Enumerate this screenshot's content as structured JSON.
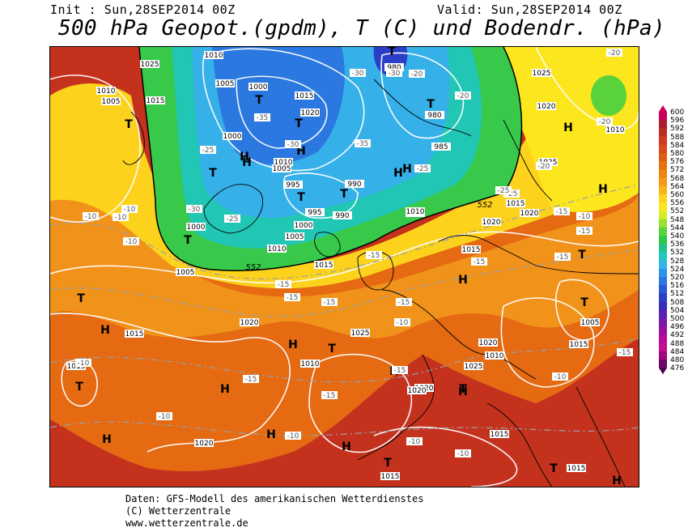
{
  "header": {
    "init": "Init : Sun,28SEP2014 00Z",
    "valid": "Valid: Sun,28SEP2014 00Z",
    "title": "500 hPa Geopot.(gpdm), T (C) und Bodendr. (hPa)"
  },
  "footer": {
    "line1": "Daten: GFS-Modell des amerikanischen Wetterdienstes",
    "line2": "(C) Wetterzentrale",
    "line3": "www.wetterzentrale.de"
  },
  "colorbar": {
    "levels": [
      "600",
      "596",
      "592",
      "588",
      "584",
      "580",
      "576",
      "572",
      "568",
      "564",
      "560",
      "556",
      "552",
      "548",
      "544",
      "540",
      "536",
      "532",
      "528",
      "524",
      "520",
      "516",
      "512",
      "508",
      "504",
      "500",
      "496",
      "492",
      "488",
      "484",
      "480",
      "476"
    ],
    "colors": [
      "#c8005a",
      "#b01e2a",
      "#be2e24",
      "#cc3c1e",
      "#d84a18",
      "#e05c14",
      "#e87010",
      "#ee8412",
      "#f39a16",
      "#f8b41a",
      "#fcd21c",
      "#fce61e",
      "#d4ec28",
      "#9ce034",
      "#5ad23c",
      "#2ec848",
      "#22c48a",
      "#20c8c0",
      "#34b4e6",
      "#2a96ea",
      "#2a78e0",
      "#2858d6",
      "#2a3ec8",
      "#3a2cba",
      "#5a20b0",
      "#7818a8",
      "#9a10a0",
      "#b80c98",
      "#c80e90",
      "#a0087c",
      "#6e0868"
    ]
  },
  "map_labels": {
    "highs": [
      "H",
      "H",
      "H",
      "H",
      "H",
      "H",
      "H",
      "H",
      "H",
      "H",
      "H",
      "H",
      "H",
      "H",
      "H",
      "H",
      "H"
    ],
    "lows": [
      "T",
      "T",
      "T",
      "T",
      "T",
      "T",
      "T",
      "T",
      "T",
      "T",
      "T",
      "T",
      "T",
      "T",
      "T",
      "T",
      "T"
    ],
    "isobars": [
      "1025",
      "1010",
      "1005",
      "1015",
      "1010",
      "1005",
      "1000",
      "1015",
      "1020",
      "985",
      "980",
      "980",
      "1025",
      "1020",
      "1010",
      "1000",
      "1010",
      "1005",
      "995",
      "990",
      "995",
      "990",
      "1000",
      "1010",
      "1020",
      "1015",
      "1020",
      "1000",
      "1005",
      "1010",
      "1005",
      "1015",
      "1015",
      "1020",
      "1025",
      "1010",
      "1010",
      "1015",
      "1020",
      "1020",
      "1025",
      "1025",
      "1005",
      "1015",
      "1010",
      "1015",
      "1020",
      "1020",
      "1015",
      "1015",
      "1015"
    ],
    "temps": [
      "-30",
      "-30",
      "-35",
      "-25",
      "-30",
      "-35",
      "-25",
      "-20",
      "-30",
      "-25",
      "-20",
      "-20",
      "-25",
      "-20",
      "-15",
      "-10",
      "-10",
      "-10",
      "-10",
      "-15",
      "-15",
      "-15",
      "-15",
      "-10",
      "-10",
      "-15",
      "-15",
      "-15",
      "-15",
      "-15",
      "-15",
      "-10",
      "-15",
      "-10",
      "-10",
      "-10",
      "-10",
      "-10",
      "-20",
      "-25",
      "-15"
    ],
    "contour552": [
      "552",
      "552"
    ]
  }
}
